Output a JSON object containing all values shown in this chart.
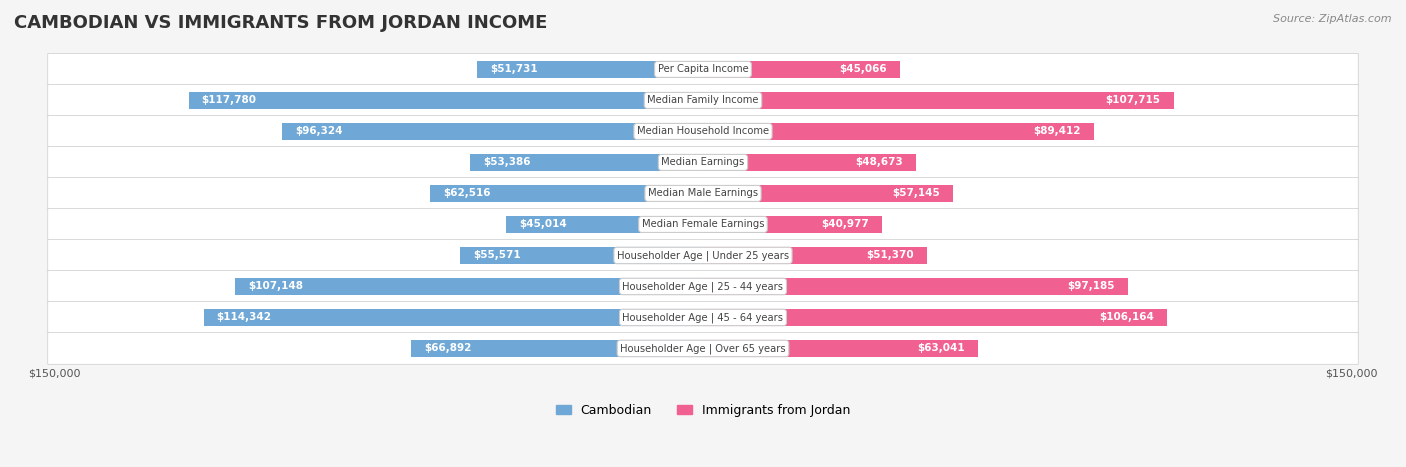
{
  "title": "CAMBODIAN VS IMMIGRANTS FROM JORDAN INCOME",
  "source": "Source: ZipAtlas.com",
  "categories": [
    "Per Capita Income",
    "Median Family Income",
    "Median Household Income",
    "Median Earnings",
    "Median Male Earnings",
    "Median Female Earnings",
    "Householder Age | Under 25 years",
    "Householder Age | 25 - 44 years",
    "Householder Age | 45 - 64 years",
    "Householder Age | Over 65 years"
  ],
  "cambodian_values": [
    51731,
    117780,
    96324,
    53386,
    62516,
    45014,
    55571,
    107148,
    114342,
    66892
  ],
  "jordan_values": [
    45066,
    107715,
    89412,
    48673,
    57145,
    40977,
    51370,
    97185,
    106164,
    63041
  ],
  "cambodian_color_light": "#aec6e8",
  "cambodian_color_dark": "#6fa8d6",
  "jordan_color_light": "#f4a0b8",
  "jordan_color_dark": "#f06090",
  "max_value": 150000,
  "bg_color": "#f5f5f5",
  "row_bg": "#ffffff",
  "legend_cambodian": "Cambodian",
  "legend_jordan": "Immigrants from Jordan",
  "xlabel_left": "$150,000",
  "xlabel_right": "$150,000"
}
